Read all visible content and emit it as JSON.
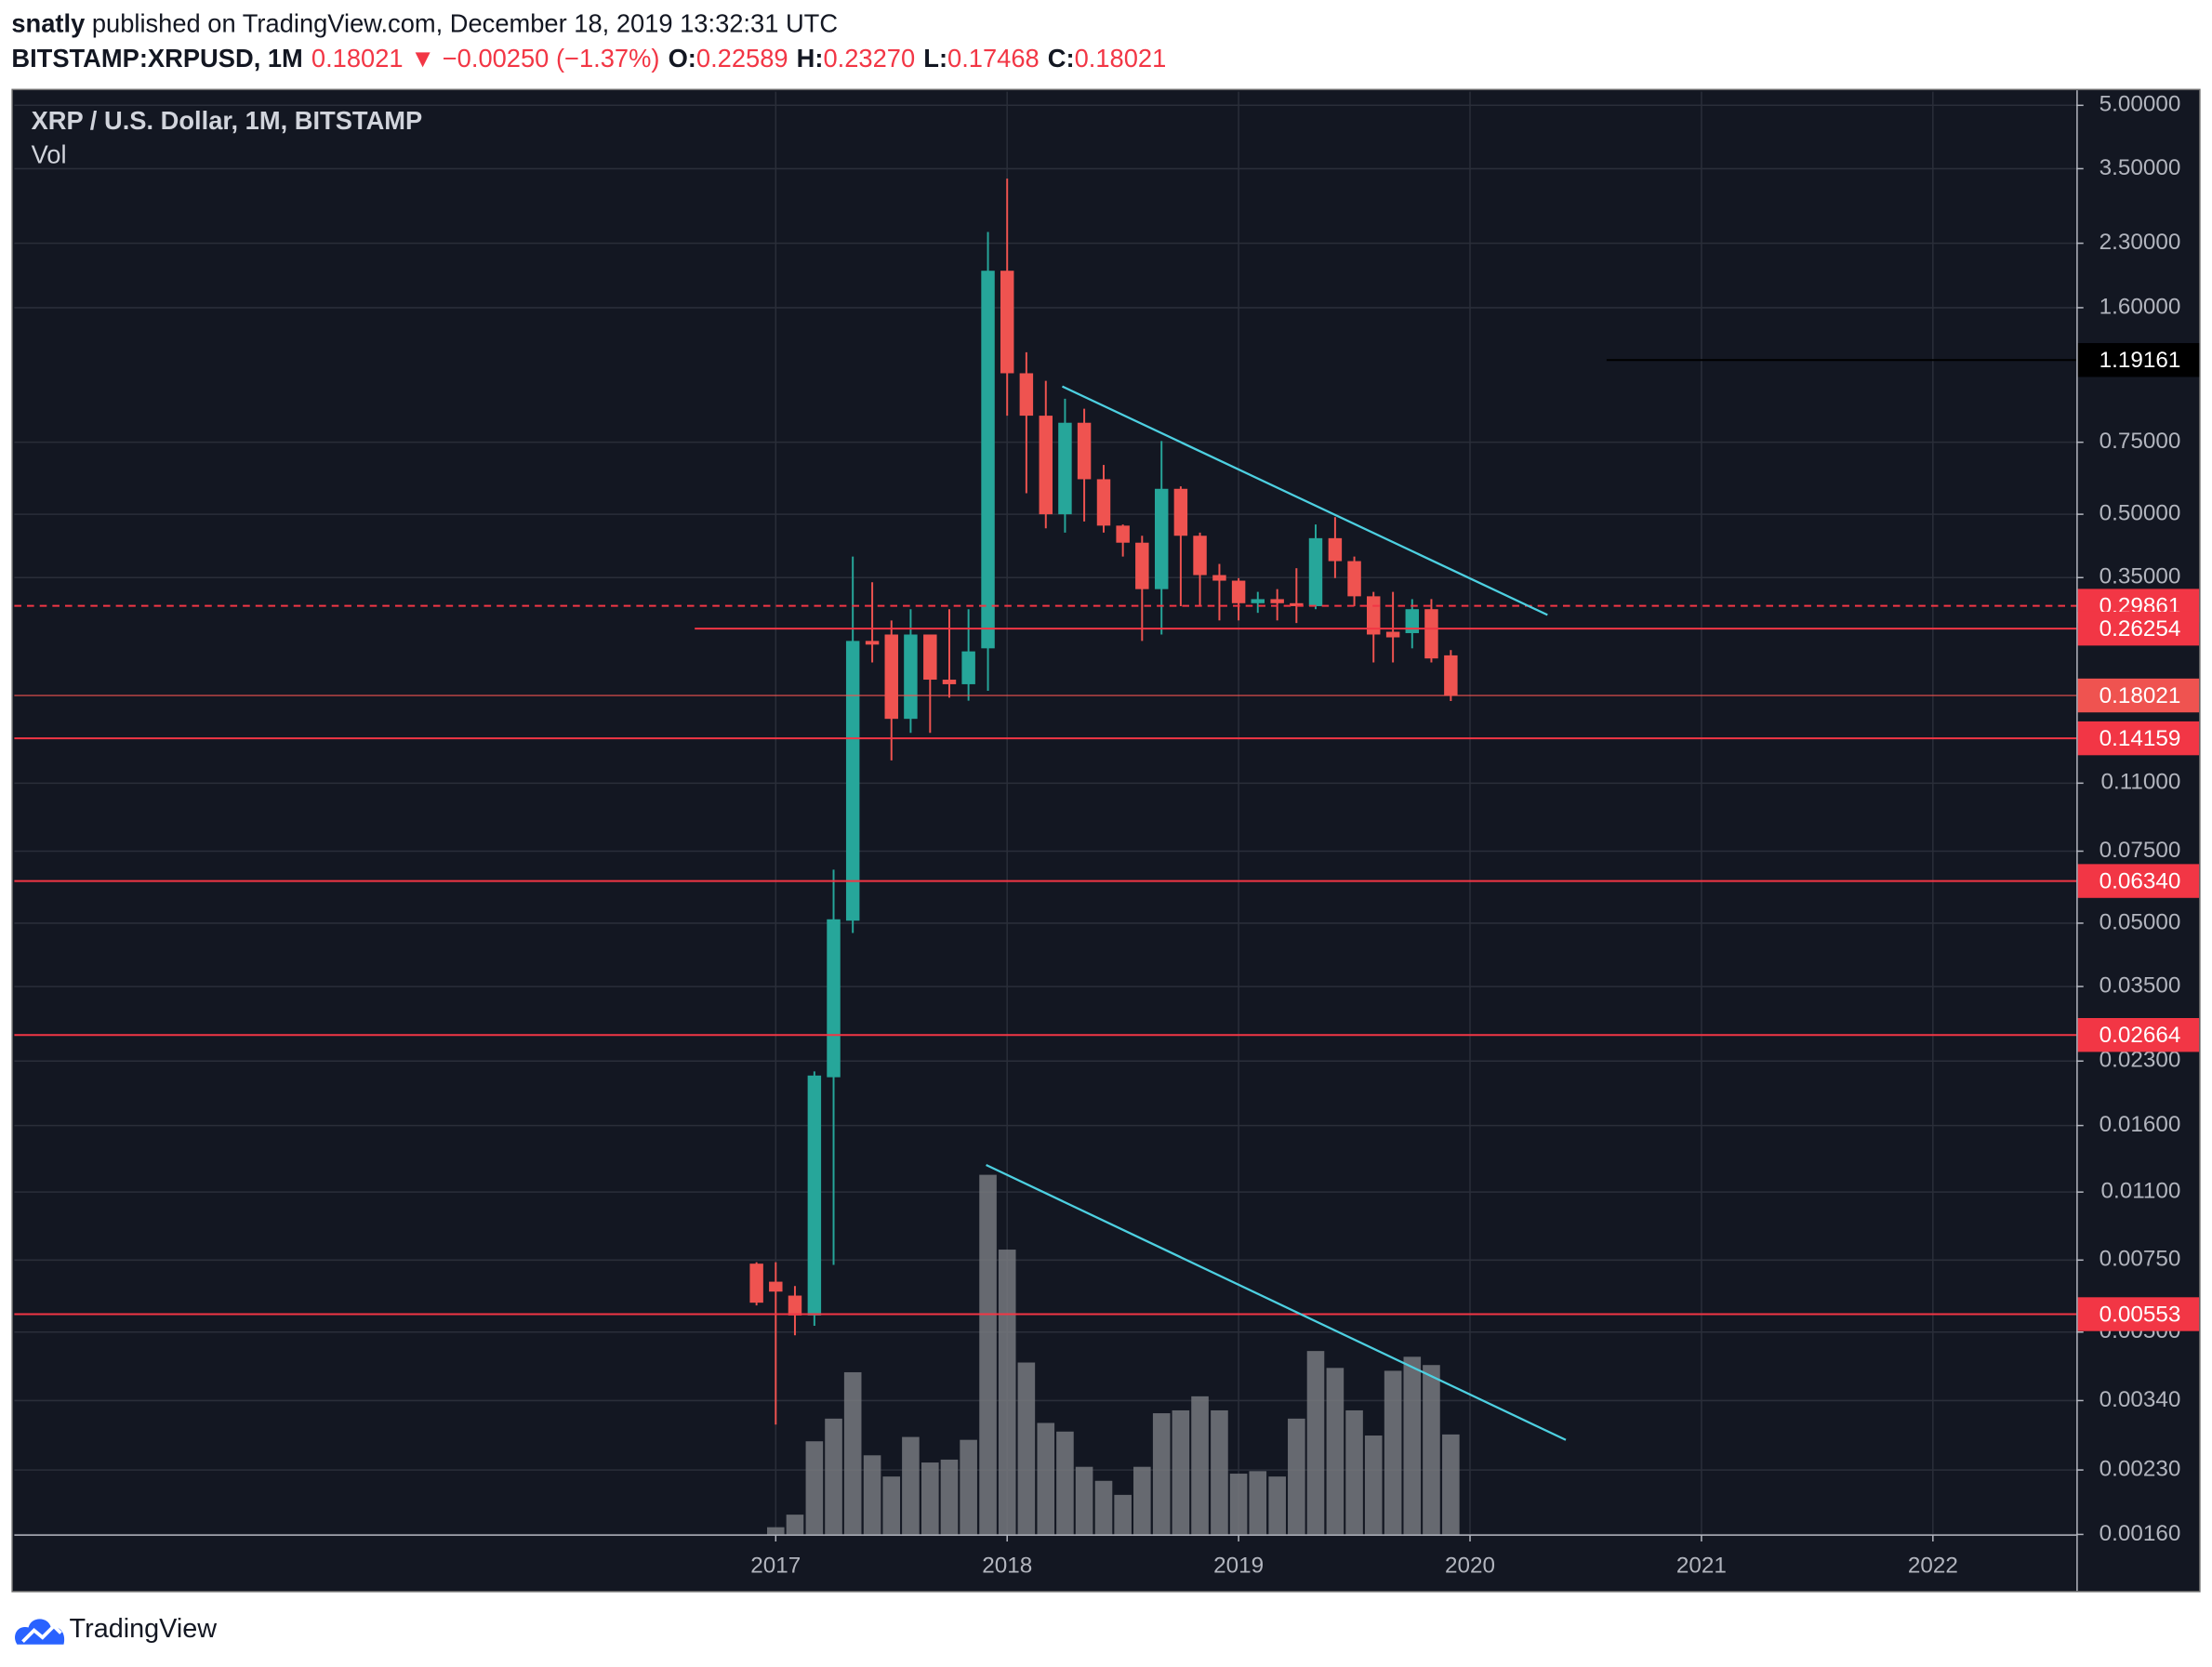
{
  "header": {
    "user": "snatly",
    "published": "published on TradingView.com, December 18, 2019 13:32:31 UTC",
    "symbol": "BITSTAMP:XRPUSD, 1M",
    "last": "0.18021",
    "change": "▼ −0.00250 (−1.37%)",
    "ohlc": [
      {
        "label": "O:",
        "value": "0.22589"
      },
      {
        "label": "H:",
        "value": "0.23270"
      },
      {
        "label": "L:",
        "value": "0.17468"
      },
      {
        "label": "C:",
        "value": "0.18021"
      }
    ]
  },
  "chart_data": {
    "type": "candlestick",
    "title": "XRP / U.S. Dollar, 1M, BITSTAMP",
    "x": [
      2016.917,
      2017,
      2017.083,
      2017.167,
      2017.25,
      2017.333,
      2017.417,
      2017.5,
      2017.583,
      2017.667,
      2017.75,
      2017.833,
      2017.917,
      2018,
      2018.083,
      2018.167,
      2018.25,
      2018.333,
      2018.417,
      2018.5,
      2018.583,
      2018.667,
      2018.75,
      2018.833,
      2018.917,
      2019,
      2019.083,
      2019.167,
      2019.25,
      2019.333,
      2019.417,
      2019.5,
      2019.583,
      2019.667,
      2019.75,
      2019.833,
      2019.917
    ],
    "open": [
      0.00735,
      0.00664,
      0.00614,
      0.00549,
      0.021,
      0.0507,
      0.245,
      0.254,
      0.158,
      0.254,
      0.197,
      0.192,
      0.235,
      1.97,
      1.106,
      0.871,
      0.5,
      0.837,
      0.609,
      0.469,
      0.426,
      0.328,
      0.577,
      0.443,
      0.355,
      0.344,
      0.303,
      0.31,
      0.303,
      0.298,
      0.437,
      0.384,
      0.315,
      0.258,
      0.256,
      0.293,
      0.22589
    ],
    "high": [
      0.00741,
      0.00741,
      0.00648,
      0.0217,
      0.0676,
      0.394,
      0.341,
      0.275,
      0.293,
      0.254,
      0.293,
      0.293,
      2.45,
      3.31,
      1.245,
      1.06,
      0.958,
      0.906,
      0.66,
      0.472,
      0.443,
      0.755,
      0.585,
      0.451,
      0.378,
      0.349,
      0.323,
      0.328,
      0.369,
      0.472,
      0.492,
      0.394,
      0.323,
      0.323,
      0.31,
      0.31,
      0.2327
    ],
    "low": [
      0.00581,
      0.00297,
      0.00491,
      0.00518,
      0.0073,
      0.0473,
      0.217,
      0.125,
      0.146,
      0.146,
      0.178,
      0.175,
      0.185,
      0.871,
      0.563,
      0.462,
      0.451,
      0.48,
      0.451,
      0.394,
      0.245,
      0.254,
      0.298,
      0.298,
      0.275,
      0.275,
      0.287,
      0.275,
      0.271,
      0.293,
      0.349,
      0.298,
      0.217,
      0.217,
      0.235,
      0.217,
      0.17468
    ],
    "close": [
      0.0059,
      0.00628,
      0.00549,
      0.0212,
      0.0511,
      0.245,
      0.24,
      0.158,
      0.254,
      0.197,
      0.192,
      0.231,
      1.97,
      1.106,
      0.871,
      0.5,
      0.837,
      0.609,
      0.469,
      0.426,
      0.328,
      0.577,
      0.443,
      0.355,
      0.344,
      0.303,
      0.31,
      0.303,
      0.298,
      0.437,
      0.384,
      0.315,
      0.254,
      0.25,
      0.293,
      0.222,
      0.18021
    ],
    "up_color": "#26a69a",
    "down_color": "#ef5350",
    "volume": {
      "name": "Vol",
      "color": "#76787e",
      "ylim": [
        0,
        100
      ],
      "values": [
        0,
        2,
        5.5,
        25.9,
        32.2,
        45.1,
        22,
        16.1,
        27.1,
        20,
        20.8,
        26.3,
        100,
        79.2,
        47.8,
        31,
        28.6,
        18.8,
        14.9,
        11,
        18.8,
        33.7,
        34.5,
        38.4,
        34.5,
        16.9,
        17.6,
        16.1,
        32.2,
        51,
        46.3,
        34.5,
        27.5,
        45.5,
        49.4,
        47.1,
        27.8
      ]
    },
    "xlim": [
      2013.71,
      2022.62
    ],
    "xticks": [
      2017,
      2018,
      2019,
      2020,
      2021,
      2022
    ],
    "ylim": [
      0.0016,
      5.4
    ],
    "log_scale": true,
    "grid": true,
    "yticks": [
      {
        "value": 5,
        "label": "5.00000"
      },
      {
        "value": 3.5,
        "label": "3.50000"
      },
      {
        "value": 2.3,
        "label": "2.30000"
      },
      {
        "value": 1.6,
        "label": "1.60000"
      },
      {
        "value": 0.75,
        "label": "0.75000"
      },
      {
        "value": 0.5,
        "label": "0.50000"
      },
      {
        "value": 0.35,
        "label": "0.35000"
      },
      {
        "value": 0.11,
        "label": "0.11000"
      },
      {
        "value": 0.075,
        "label": "0.07500"
      },
      {
        "value": 0.05,
        "label": "0.05000"
      },
      {
        "value": 0.035,
        "label": "0.03500"
      },
      {
        "value": 0.023,
        "label": "0.02300"
      },
      {
        "value": 0.016,
        "label": "0.01600"
      },
      {
        "value": 0.011,
        "label": "0.01100"
      },
      {
        "value": 0.0075,
        "label": "0.00750"
      },
      {
        "value": 0.005,
        "label": "0.00500"
      },
      {
        "value": 0.0034,
        "label": "0.00340"
      },
      {
        "value": 0.0023,
        "label": "0.00230"
      },
      {
        "value": 0.0016,
        "label": "0.00160"
      }
    ],
    "levels": [
      {
        "value": 1.19161,
        "color": "#000000",
        "style": "solid",
        "x_start": 2020.59
      },
      {
        "value": 0.29861,
        "color": "#f23645",
        "style": "dashed"
      },
      {
        "value": 0.26254,
        "color": "#f23645",
        "style": "solid",
        "x_start": 2016.65
      },
      {
        "value": 0.18021,
        "color": "#ef5350",
        "style": "thin"
      },
      {
        "value": 0.14159,
        "color": "#f23645",
        "style": "solid"
      },
      {
        "value": 0.0634,
        "label": "0.06340",
        "color": "#f23645",
        "style": "solid"
      },
      {
        "value": 0.02664,
        "color": "#f23645",
        "style": "solid"
      },
      {
        "value": 0.00553,
        "color": "#f23645",
        "style": "solid"
      }
    ]
  },
  "footer": {
    "brand": "TradingView"
  }
}
